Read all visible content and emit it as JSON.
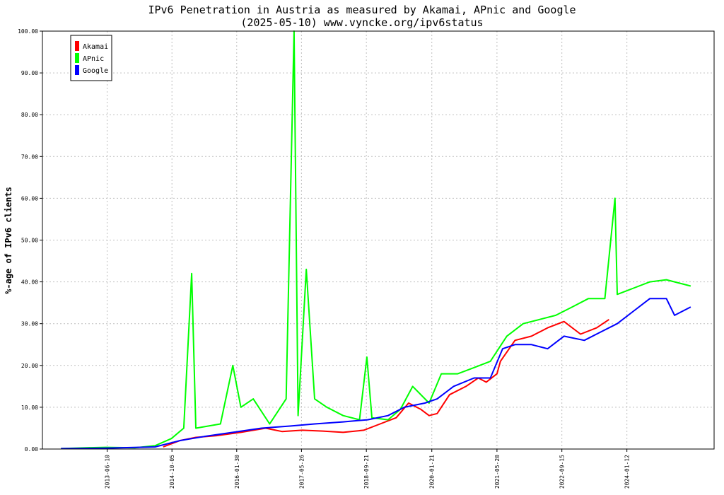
{
  "chart_data": {
    "type": "line",
    "title": "IPv6 Penetration in Austria as measured by Akamai, APnic and Google",
    "subtitle": "(2025-05-10) www.vyncke.org/ipv6status",
    "ylabel": "%-age of IPv6 clients",
    "xlabel": "",
    "ylim": [
      0,
      100
    ],
    "y_ticks": [
      "0.00",
      "10.00",
      "20.00",
      "30.00",
      "40.00",
      "50.00",
      "60.00",
      "70.00",
      "80.00",
      "90.00",
      "100.00"
    ],
    "x_ticks": [
      "2013-06-10",
      "2014-10-05",
      "2016-01-30",
      "2017-05-26",
      "2018-09-21",
      "2020-01-21",
      "2021-05-20",
      "2022-09-15",
      "2024-01-12"
    ],
    "xlim": [
      "2012-02-14",
      "2025-10-22"
    ],
    "grid": true,
    "legend_position": "top-left",
    "series": [
      {
        "name": "Akamai",
        "color": "#ff0000",
        "points": [
          [
            "2014-08-01",
            0.5
          ],
          [
            "2014-12-01",
            2.0
          ],
          [
            "2015-04-01",
            2.8
          ],
          [
            "2015-09-01",
            3.2
          ],
          [
            "2016-03-01",
            4.0
          ],
          [
            "2016-09-01",
            5.0
          ],
          [
            "2017-01-01",
            4.2
          ],
          [
            "2017-06-01",
            4.5
          ],
          [
            "2017-11-01",
            4.3
          ],
          [
            "2018-04-01",
            4.0
          ],
          [
            "2018-09-01",
            4.5
          ],
          [
            "2019-01-01",
            6.0
          ],
          [
            "2019-05-01",
            7.5
          ],
          [
            "2019-08-01",
            11.0
          ],
          [
            "2019-11-01",
            9.5
          ],
          [
            "2020-01-01",
            8.0
          ],
          [
            "2020-03-01",
            8.5
          ],
          [
            "2020-06-01",
            13.0
          ],
          [
            "2020-10-01",
            15.0
          ],
          [
            "2021-01-01",
            17.0
          ],
          [
            "2021-03-01",
            16.0
          ],
          [
            "2021-05-20",
            18.0
          ],
          [
            "2021-06-15",
            21.0
          ],
          [
            "2021-10-01",
            26.0
          ],
          [
            "2022-02-01",
            27.0
          ],
          [
            "2022-06-01",
            29.0
          ],
          [
            "2022-10-01",
            30.5
          ],
          [
            "2023-02-01",
            27.5
          ],
          [
            "2023-06-01",
            29.0
          ],
          [
            "2023-09-01",
            31.0
          ]
        ]
      },
      {
        "name": "APnic",
        "color": "#00ff00",
        "points": [
          [
            "2012-07-01",
            0.1
          ],
          [
            "2013-01-01",
            0.3
          ],
          [
            "2013-06-01",
            0.4
          ],
          [
            "2014-01-01",
            0.3
          ],
          [
            "2014-06-01",
            0.8
          ],
          [
            "2014-10-01",
            2.5
          ],
          [
            "2015-01-01",
            5.0
          ],
          [
            "2015-03-01",
            42.0
          ],
          [
            "2015-04-01",
            5.0
          ],
          [
            "2015-10-01",
            6.0
          ],
          [
            "2016-01-01",
            20.0
          ],
          [
            "2016-03-01",
            10.0
          ],
          [
            "2016-06-01",
            12.0
          ],
          [
            "2016-10-01",
            6.0
          ],
          [
            "2017-02-01",
            12.0
          ],
          [
            "2017-04-01",
            100.0
          ],
          [
            "2017-05-01",
            8.0
          ],
          [
            "2017-07-01",
            43.0
          ],
          [
            "2017-09-01",
            12.0
          ],
          [
            "2017-12-01",
            10.0
          ],
          [
            "2018-04-01",
            8.0
          ],
          [
            "2018-08-01",
            7.0
          ],
          [
            "2018-09-25",
            22.0
          ],
          [
            "2018-11-01",
            7.5
          ],
          [
            "2019-03-01",
            7.0
          ],
          [
            "2019-06-01",
            9.5
          ],
          [
            "2019-09-01",
            15.0
          ],
          [
            "2020-01-01",
            11.0
          ],
          [
            "2020-04-01",
            18.0
          ],
          [
            "2020-08-01",
            18.0
          ],
          [
            "2020-12-01",
            19.5
          ],
          [
            "2021-04-01",
            21.0
          ],
          [
            "2021-08-01",
            27.0
          ],
          [
            "2021-12-01",
            30.0
          ],
          [
            "2022-04-01",
            31.0
          ],
          [
            "2022-08-01",
            32.0
          ],
          [
            "2022-12-01",
            34.0
          ],
          [
            "2023-04-01",
            36.0
          ],
          [
            "2023-08-01",
            36.0
          ],
          [
            "2023-10-15",
            60.0
          ],
          [
            "2023-11-01",
            37.0
          ],
          [
            "2024-03-01",
            38.5
          ],
          [
            "2024-07-01",
            40.0
          ],
          [
            "2024-11-01",
            40.5
          ],
          [
            "2025-05-01",
            39.0
          ]
        ]
      },
      {
        "name": "Google",
        "color": "#0000ff",
        "points": [
          [
            "2012-07-01",
            0.1
          ],
          [
            "2013-06-01",
            0.2
          ],
          [
            "2014-06-01",
            0.5
          ],
          [
            "2014-12-01",
            2.0
          ],
          [
            "2015-06-01",
            3.0
          ],
          [
            "2016-01-01",
            4.0
          ],
          [
            "2016-08-01",
            5.0
          ],
          [
            "2017-03-01",
            5.5
          ],
          [
            "2017-09-01",
            6.0
          ],
          [
            "2018-04-01",
            6.5
          ],
          [
            "2018-10-01",
            7.0
          ],
          [
            "2019-03-01",
            8.0
          ],
          [
            "2019-07-01",
            10.0
          ],
          [
            "2019-12-01",
            11.0
          ],
          [
            "2020-03-01",
            12.0
          ],
          [
            "2020-07-01",
            15.0
          ],
          [
            "2020-12-01",
            17.0
          ],
          [
            "2021-04-01",
            17.0
          ],
          [
            "2021-07-01",
            24.0
          ],
          [
            "2021-10-01",
            25.0
          ],
          [
            "2022-02-01",
            25.0
          ],
          [
            "2022-06-01",
            24.0
          ],
          [
            "2022-10-01",
            27.0
          ],
          [
            "2023-03-01",
            26.0
          ],
          [
            "2023-07-01",
            28.0
          ],
          [
            "2023-11-01",
            30.0
          ],
          [
            "2024-03-01",
            33.0
          ],
          [
            "2024-07-01",
            36.0
          ],
          [
            "2024-11-01",
            36.0
          ],
          [
            "2025-01-01",
            32.0
          ],
          [
            "2025-05-01",
            34.0
          ]
        ]
      }
    ]
  }
}
